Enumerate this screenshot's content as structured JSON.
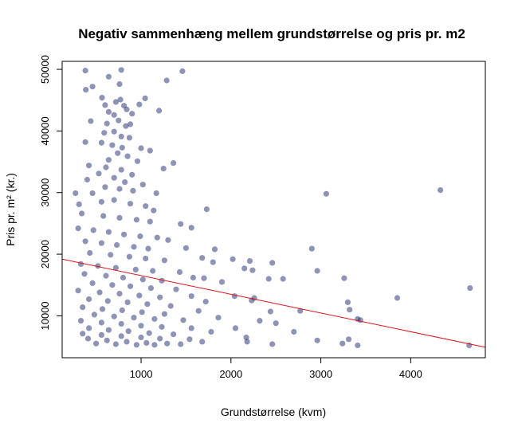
{
  "chart_data": {
    "type": "scatter",
    "title": "Negativ sammenhæng mellem grundstørrelse og pris pr. m2",
    "xlabel": "Grundstørrelse (kvm)",
    "ylabel": "Pris pr. m² (kr.)",
    "xlim": [
      122,
      4830
    ],
    "ylim": [
      3200,
      51300
    ],
    "xticks": [
      "1000",
      "2000",
      "3000",
      "4000"
    ],
    "yticks": [
      "10000",
      "20000",
      "30000",
      "40000",
      "50000"
    ],
    "grid": false,
    "point_color": "#1f2a6e",
    "line_color": "#e0121b",
    "trend_line": {
      "x": [
        122,
        4830
      ],
      "y": [
        19200,
        4900
      ]
    },
    "series": [
      {
        "values": [
          [
            380,
            49800
          ],
          [
            640,
            48800
          ],
          [
            760,
            47600
          ],
          [
            780,
            49900
          ],
          [
            1285,
            48200
          ],
          [
            1460,
            49700
          ],
          [
            385,
            46700
          ],
          [
            460,
            47200
          ],
          [
            565,
            45400
          ],
          [
            600,
            44200
          ],
          [
            720,
            44700
          ],
          [
            770,
            45100
          ],
          [
            810,
            44100
          ],
          [
            980,
            44300
          ],
          [
            1045,
            45300
          ],
          [
            840,
            43500
          ],
          [
            640,
            43100
          ],
          [
            700,
            42600
          ],
          [
            900,
            42800
          ],
          [
            1200,
            43300
          ],
          [
            440,
            41600
          ],
          [
            620,
            41200
          ],
          [
            750,
            41700
          ],
          [
            830,
            40800
          ],
          [
            880,
            41100
          ],
          [
            590,
            39700
          ],
          [
            700,
            39900
          ],
          [
            780,
            39100
          ],
          [
            870,
            38900
          ],
          [
            380,
            38200
          ],
          [
            560,
            38100
          ],
          [
            680,
            37700
          ],
          [
            790,
            37300
          ],
          [
            1000,
            37200
          ],
          [
            1100,
            36800
          ],
          [
            740,
            36400
          ],
          [
            850,
            35900
          ],
          [
            640,
            35300
          ],
          [
            960,
            35100
          ],
          [
            420,
            34400
          ],
          [
            610,
            34100
          ],
          [
            780,
            33700
          ],
          [
            1360,
            34800
          ],
          [
            1250,
            33900
          ],
          [
            530,
            33100
          ],
          [
            900,
            32900
          ],
          [
            700,
            32400
          ],
          [
            400,
            32100
          ],
          [
            820,
            31700
          ],
          [
            1020,
            31300
          ],
          [
            600,
            30900
          ],
          [
            760,
            30600
          ],
          [
            910,
            30300
          ],
          [
            1170,
            29900
          ],
          [
            460,
            29900
          ],
          [
            270,
            29900
          ],
          [
            310,
            28100
          ],
          [
            560,
            28500
          ],
          [
            700,
            28800
          ],
          [
            880,
            28200
          ],
          [
            1050,
            27800
          ],
          [
            1140,
            27100
          ],
          [
            1730,
            27300
          ],
          [
            3060,
            29800
          ],
          [
            4330,
            30400
          ],
          [
            340,
            26600
          ],
          [
            580,
            26200
          ],
          [
            760,
            25900
          ],
          [
            950,
            25600
          ],
          [
            1100,
            25300
          ],
          [
            1440,
            24900
          ],
          [
            1560,
            24300
          ],
          [
            300,
            24200
          ],
          [
            470,
            23900
          ],
          [
            640,
            23600
          ],
          [
            810,
            23200
          ],
          [
            990,
            22900
          ],
          [
            1180,
            22700
          ],
          [
            1300,
            22300
          ],
          [
            380,
            22100
          ],
          [
            560,
            21800
          ],
          [
            730,
            21500
          ],
          [
            920,
            21200
          ],
          [
            1080,
            20900
          ],
          [
            1500,
            21000
          ],
          [
            1820,
            20800
          ],
          [
            2900,
            20900
          ],
          [
            430,
            20200
          ],
          [
            660,
            19900
          ],
          [
            870,
            19600
          ],
          [
            1050,
            19300
          ],
          [
            1260,
            19000
          ],
          [
            1680,
            19400
          ],
          [
            1800,
            18700
          ],
          [
            2020,
            19200
          ],
          [
            2210,
            18900
          ],
          [
            2460,
            18600
          ],
          [
            330,
            18400
          ],
          [
            520,
            18100
          ],
          [
            720,
            17800
          ],
          [
            940,
            17500
          ],
          [
            1130,
            17300
          ],
          [
            1430,
            17100
          ],
          [
            2150,
            17700
          ],
          [
            2240,
            17400
          ],
          [
            2960,
            17300
          ],
          [
            370,
            16800
          ],
          [
            610,
            16500
          ],
          [
            800,
            16200
          ],
          [
            1020,
            15900
          ],
          [
            1230,
            15700
          ],
          [
            1580,
            16200
          ],
          [
            1700,
            16100
          ],
          [
            2420,
            16000
          ],
          [
            2580,
            16000
          ],
          [
            3260,
            16100
          ],
          [
            460,
            15300
          ],
          [
            680,
            15000
          ],
          [
            880,
            14800
          ],
          [
            1110,
            14500
          ],
          [
            1390,
            14300
          ],
          [
            1900,
            15500
          ],
          [
            300,
            14100
          ],
          [
            540,
            13800
          ],
          [
            760,
            13600
          ],
          [
            980,
            13300
          ],
          [
            1210,
            13000
          ],
          [
            1560,
            13200
          ],
          [
            2040,
            13200
          ],
          [
            2260,
            12900
          ],
          [
            420,
            12700
          ],
          [
            630,
            12400
          ],
          [
            850,
            12200
          ],
          [
            1070,
            11900
          ],
          [
            1330,
            11600
          ],
          [
            1720,
            12300
          ],
          [
            2230,
            12500
          ],
          [
            3300,
            12200
          ],
          [
            3850,
            12900
          ],
          [
            4660,
            14500
          ],
          [
            350,
            11400
          ],
          [
            570,
            11100
          ],
          [
            790,
            10900
          ],
          [
            1010,
            10600
          ],
          [
            1260,
            10300
          ],
          [
            1640,
            10800
          ],
          [
            2440,
            10700
          ],
          [
            2770,
            10800
          ],
          [
            3320,
            11000
          ],
          [
            480,
            10200
          ],
          [
            700,
            9900
          ],
          [
            920,
            9700
          ],
          [
            1150,
            9500
          ],
          [
            1470,
            9300
          ],
          [
            1860,
            9700
          ],
          [
            2320,
            9200
          ],
          [
            3410,
            9500
          ],
          [
            330,
            9200
          ],
          [
            560,
            8900
          ],
          [
            780,
            8700
          ],
          [
            1000,
            8400
          ],
          [
            1230,
            8200
          ],
          [
            1560,
            8000
          ],
          [
            2050,
            8000
          ],
          [
            2500,
            8800
          ],
          [
            3440,
            9300
          ],
          [
            420,
            8000
          ],
          [
            640,
            7700
          ],
          [
            860,
            7500
          ],
          [
            1090,
            7200
          ],
          [
            1360,
            7000
          ],
          [
            1780,
            7400
          ],
          [
            2700,
            7400
          ],
          [
            350,
            7100
          ],
          [
            560,
            6900
          ],
          [
            780,
            6700
          ],
          [
            1000,
            6500
          ],
          [
            1210,
            6300
          ],
          [
            1540,
            6200
          ],
          [
            2170,
            6500
          ],
          [
            2960,
            6000
          ],
          [
            3310,
            6200
          ],
          [
            410,
            6300
          ],
          [
            620,
            6000
          ],
          [
            840,
            5800
          ],
          [
            1060,
            5600
          ],
          [
            1290,
            5500
          ],
          [
            1680,
            5800
          ],
          [
            2180,
            5800
          ],
          [
            2460,
            5400
          ],
          [
            3240,
            5500
          ],
          [
            3410,
            5200
          ],
          [
            4650,
            5200
          ],
          [
            500,
            5500
          ],
          [
            720,
            5400
          ],
          [
            950,
            5300
          ],
          [
            1150,
            5300
          ],
          [
            1440,
            5400
          ]
        ]
      }
    ]
  }
}
